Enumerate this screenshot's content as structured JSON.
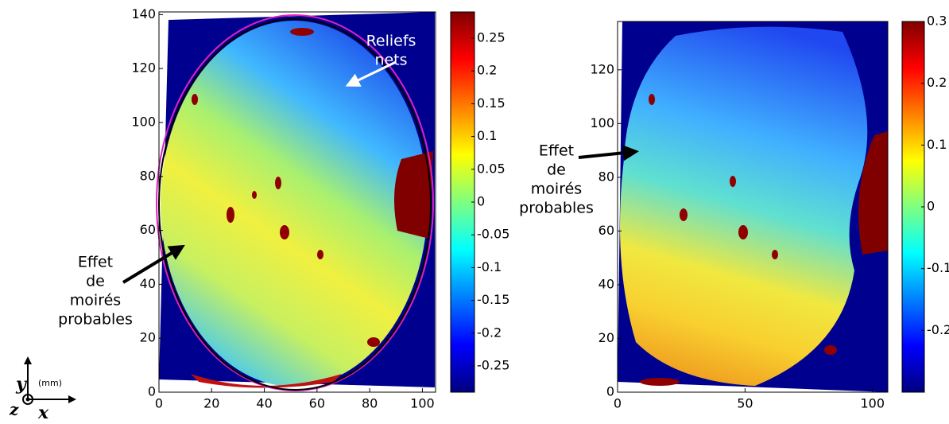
{
  "chart_data": [
    {
      "type": "image",
      "xlim": [
        0,
        105
      ],
      "ylim": [
        0,
        141
      ],
      "xticks": [
        0,
        20,
        40,
        60,
        80,
        100
      ],
      "yticks": [
        0,
        20,
        40,
        60,
        80,
        100,
        120,
        140
      ],
      "colorbar": {
        "lim": [
          -0.29,
          0.29
        ],
        "ticks": [
          0.25,
          0.2,
          0.15,
          0.1,
          0.05,
          0,
          -0.05,
          -0.1,
          -0.15,
          -0.2,
          -0.25
        ]
      },
      "annotations": [
        {
          "lines": [
            "Reliefs",
            "nets"
          ]
        },
        {
          "lines": [
            "Effet",
            "de",
            "moirés",
            "probables"
          ]
        }
      ]
    },
    {
      "type": "image",
      "xlim": [
        0,
        106
      ],
      "ylim": [
        0,
        138
      ],
      "xticks": [
        0,
        50,
        100
      ],
      "yticks": [
        0,
        20,
        40,
        60,
        80,
        100,
        120
      ],
      "colorbar": {
        "lim": [
          -0.3,
          0.3
        ],
        "ticks": [
          0.3,
          0.2,
          0.1,
          0,
          -0.1,
          -0.2
        ]
      },
      "annotations": [
        {
          "lines": [
            "Effet",
            "de",
            "moirés",
            "probables"
          ]
        }
      ]
    }
  ],
  "axis_triad": {
    "y": "y",
    "unit": "(mm)",
    "z": "z",
    "x": "x"
  }
}
